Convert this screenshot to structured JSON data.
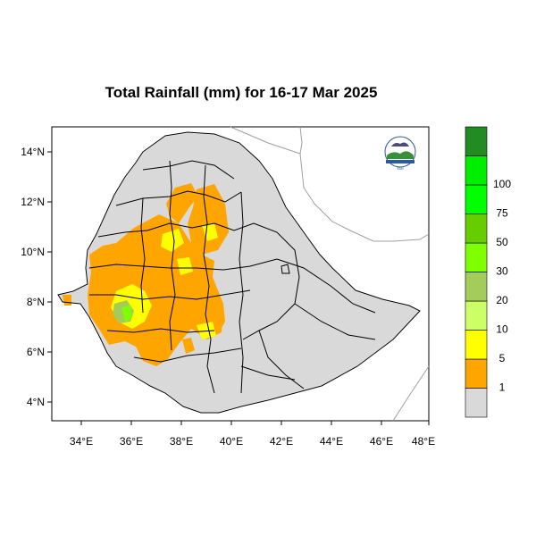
{
  "title": "Total Rainfall (mm) for 16-17 Mar 2025",
  "axes": {
    "x_ticks": [
      "34°E",
      "36°E",
      "38°E",
      "40°E",
      "42°E",
      "44°E",
      "46°E",
      "48°E"
    ],
    "y_ticks": [
      "14°N",
      "12°N",
      "10°N",
      "8°N",
      "6°N",
      "4°N"
    ]
  },
  "legend": {
    "colors": [
      "#d9d9d9",
      "#ffa500",
      "#ffff00",
      "#ccff66",
      "#a2cd5a",
      "#7fff00",
      "#66cd00",
      "#00ff00",
      "#00ee00",
      "#228b22"
    ],
    "labels": [
      "1",
      "5",
      "10",
      "20",
      "30",
      "50",
      "75",
      "100"
    ]
  },
  "logo": {
    "name": "meteorology-agency-logo"
  },
  "colors": {
    "land": "#d9d9d9",
    "border": "#000000",
    "neighbor": "#a0a0a0"
  }
}
